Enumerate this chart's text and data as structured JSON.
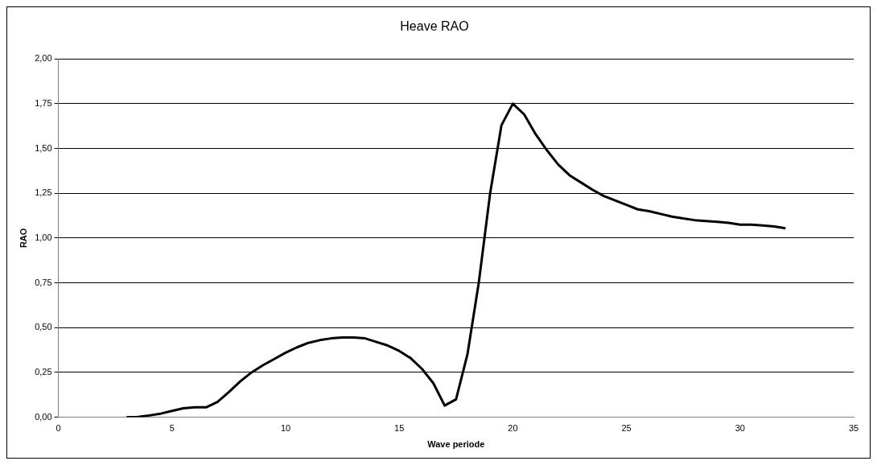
{
  "chart_data": {
    "type": "line",
    "title": "Heave RAO",
    "xlabel": "Wave periode",
    "ylabel": "RAO",
    "x": [
      3,
      3.5,
      4,
      4.5,
      5,
      5.5,
      6,
      6.5,
      7,
      7.5,
      8,
      8.5,
      9,
      9.5,
      10,
      10.5,
      11,
      11.5,
      12,
      12.5,
      13,
      13.5,
      14,
      14.5,
      15,
      15.5,
      16,
      16.5,
      17,
      17.5,
      18,
      18.5,
      19,
      19.5,
      20,
      20.5,
      21,
      21.5,
      22,
      22.5,
      23,
      23.5,
      24,
      24.5,
      25,
      25.5,
      26,
      26.5,
      27,
      27.5,
      28,
      28.5,
      29,
      29.5,
      30,
      30.5,
      31,
      31.5,
      32
    ],
    "series": [
      {
        "color": "#000000",
        "values": [
          0,
          0.002,
          0.01,
          0.02,
          0.035,
          0.05,
          0.055,
          0.055,
          0.085,
          0.14,
          0.2,
          0.25,
          0.29,
          0.325,
          0.36,
          0.39,
          0.415,
          0.43,
          0.44,
          0.445,
          0.445,
          0.44,
          0.42,
          0.4,
          0.37,
          0.33,
          0.27,
          0.19,
          0.065,
          0.1,
          0.35,
          0.75,
          1.25,
          1.63,
          1.75,
          1.69,
          1.58,
          1.49,
          1.41,
          1.35,
          1.31,
          1.27,
          1.235,
          1.21,
          1.185,
          1.16,
          1.15,
          1.135,
          1.12,
          1.11,
          1.1,
          1.095,
          1.09,
          1.085,
          1.075,
          1.075,
          1.07,
          1.065,
          1.055
        ]
      }
    ],
    "xlim": [
      0,
      35
    ],
    "xticks": [
      0,
      5,
      10,
      15,
      20,
      25,
      30,
      35
    ],
    "ylim": [
      0,
      2
    ],
    "yticks": [
      {
        "value": 0,
        "label": "0,00"
      },
      {
        "value": 0.25,
        "label": "0,25"
      },
      {
        "value": 0.5,
        "label": "0,50"
      },
      {
        "value": 0.75,
        "label": "0,75"
      },
      {
        "value": 1,
        "label": "1,00"
      },
      {
        "value": 1.25,
        "label": "1,25"
      },
      {
        "value": 1.5,
        "label": "1,50"
      },
      {
        "value": 1.75,
        "label": "1,75"
      },
      {
        "value": 2,
        "label": "2,00"
      }
    ],
    "grid": "y",
    "legend": false,
    "marker": "none",
    "line_style": "solid"
  }
}
